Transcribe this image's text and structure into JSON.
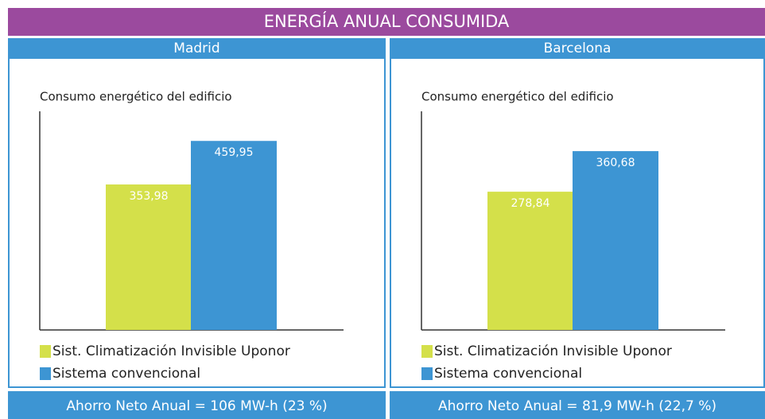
{
  "title": "ENERGÍA ANUAL CONSUMIDA",
  "chart_data": [
    {
      "type": "bar",
      "header": "Madrid",
      "title": "Consumo energético del edificio",
      "ylim": [
        0,
        532
      ],
      "series": [
        {
          "name": "Sist. Climatización Invisible Uponor",
          "color": "#d4e04a",
          "values": [
            353.98
          ],
          "value_labels": [
            "353,98"
          ]
        },
        {
          "name": "Sistema convencional",
          "color": "#3d95d3",
          "values": [
            459.95
          ],
          "value_labels": [
            "459,95"
          ]
        }
      ],
      "footer": "Ahorro Neto Anual = 106 MW-h  (23 %)"
    },
    {
      "type": "bar",
      "header": "Barcelona",
      "title": "Consumo energético del edificio",
      "ylim": [
        0,
        441
      ],
      "series": [
        {
          "name": "Sist. Climatización Invisible Uponor",
          "color": "#d4e04a",
          "values": [
            278.84
          ],
          "value_labels": [
            "278,84"
          ]
        },
        {
          "name": "Sistema convencional",
          "color": "#3d95d3",
          "values": [
            360.68
          ],
          "value_labels": [
            "360,68"
          ]
        }
      ],
      "footer": "Ahorro Neto Anual = 81,9 MW-h  (22,7 %)"
    }
  ]
}
